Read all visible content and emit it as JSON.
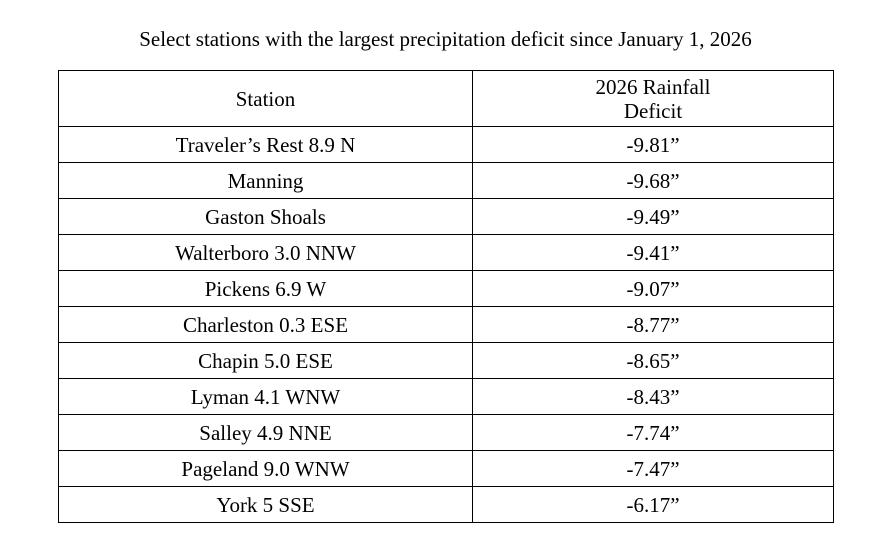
{
  "title": "Select stations with the largest precipitation deficit since January 1, 2026",
  "table": {
    "columns": {
      "station": "Station",
      "deficit_line1": "2026 Rainfall",
      "deficit_line2": "Deficit"
    },
    "rows": [
      {
        "station": "Traveler’s Rest 8.9 N",
        "deficit": "-9.81”"
      },
      {
        "station": "Manning",
        "deficit": "-9.68”"
      },
      {
        "station": "Gaston Shoals",
        "deficit": "-9.49”"
      },
      {
        "station": "Walterboro 3.0 NNW",
        "deficit": "-9.41”"
      },
      {
        "station": "Pickens 6.9 W",
        "deficit": "-9.07”"
      },
      {
        "station": "Charleston 0.3 ESE",
        "deficit": "-8.77”"
      },
      {
        "station": "Chapin 5.0 ESE",
        "deficit": "-8.65”"
      },
      {
        "station": "Lyman 4.1 WNW",
        "deficit": "-8.43”"
      },
      {
        "station": "Salley 4.9 NNE",
        "deficit": "-7.74”"
      },
      {
        "station": "Pageland 9.0 WNW",
        "deficit": "-7.47”"
      },
      {
        "station": "York 5 SSE",
        "deficit": "-6.17”"
      }
    ]
  }
}
